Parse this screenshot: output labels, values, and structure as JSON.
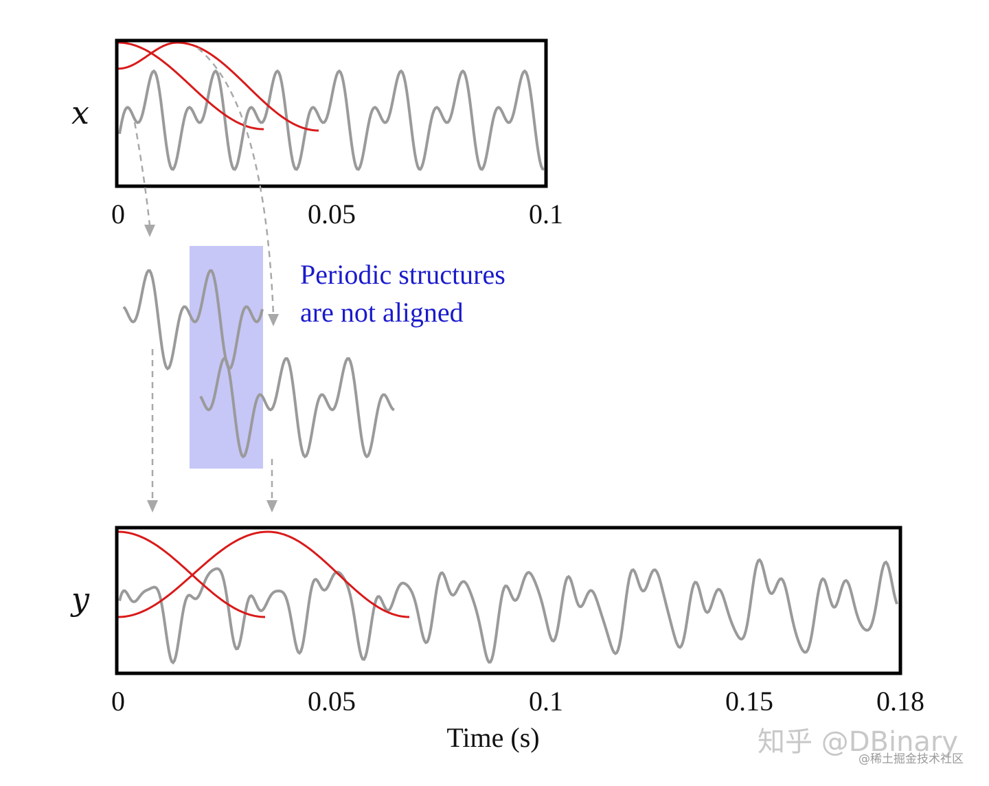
{
  "panel_x": {
    "variable_label": "x",
    "tick_labels": [
      "0",
      "0.05",
      "0.1"
    ],
    "ticks": [
      0,
      0.05,
      0.1
    ],
    "time_range": [
      0,
      0.1
    ]
  },
  "panel_y": {
    "variable_label": "y",
    "tick_labels": [
      "0",
      "0.05",
      "0.1",
      "0.15",
      "0.18"
    ],
    "ticks": [
      0,
      0.05,
      0.1,
      0.15,
      0.18
    ],
    "time_range": [
      0,
      0.18
    ],
    "axis_title": "Time (s)"
  },
  "annotation": {
    "line1": "Periodic structures",
    "line2": "are not aligned",
    "color": "#1a1acc"
  },
  "colors": {
    "signal": "#9a9a9a",
    "window": "#d91a1a",
    "highlight": "#c6c6f7",
    "arrow": "#a8a8a8",
    "frame": "#000000"
  },
  "watermark": {
    "main": "知乎 @DBinary",
    "sub": "@稀土掘金技术社区"
  }
}
